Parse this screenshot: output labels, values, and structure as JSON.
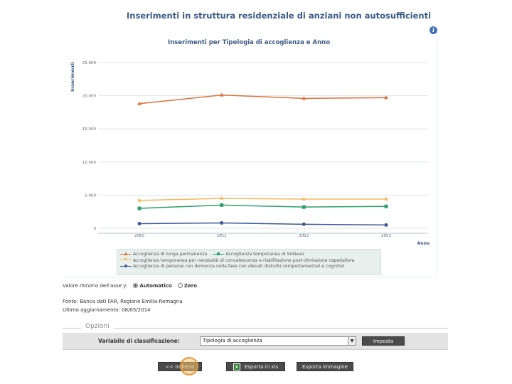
{
  "page": {
    "title": "Inserimenti in struttura residenziale di anziani non autosufficienti",
    "info_icon": "info-icon"
  },
  "chart_data": {
    "type": "line",
    "title": "Inserimenti per Tipologia di accoglienza e Anno",
    "xlabel": "Anno",
    "ylabel": "Inserimenti",
    "categories": [
      "2010",
      "2011",
      "2012",
      "2013"
    ],
    "ylim": [
      0,
      25000
    ],
    "yticks": [
      0,
      5000,
      10000,
      15000,
      20000,
      25000
    ],
    "ytick_labels": [
      "0",
      "5.000",
      "10.000",
      "15.000",
      "20.000",
      "25.000"
    ],
    "grid": true,
    "legend_position": "bottom",
    "series": [
      {
        "name": "Accoglienza di lunga permanenza",
        "marker": "triangle",
        "color": "#e0703a",
        "values": [
          18800,
          20100,
          19600,
          19700
        ]
      },
      {
        "name": "Accoglienza temporanea di Sollievo",
        "marker": "square",
        "color": "#2e9e6b",
        "values": [
          3000,
          3500,
          3200,
          3300
        ]
      },
      {
        "name": "Accoglienza temporanea per necessità di convalescenza e riabilitazione post-dimissione ospedaliera",
        "marker": "star",
        "color": "#f2b85b",
        "values": [
          4200,
          4500,
          4400,
          4400
        ]
      },
      {
        "name": "Accoglienza di persone con demenza nella fase con elevati disturbi comportamentali e cognitivi",
        "marker": "circle",
        "color": "#3a5a9a",
        "values": [
          700,
          800,
          600,
          500
        ]
      }
    ]
  },
  "yaxis_min": {
    "label": "Valore minimo dell'asse y:",
    "options": [
      "Automatico",
      "Zero"
    ],
    "selected": "Automatico"
  },
  "source": "Fonte: Banca dati FAR, Regione Emilia-Romagna",
  "updated": "Ultimo aggiornamento: 08/05/2014",
  "options": {
    "legend": "Opzioni",
    "classification_label": "Variabile di classificazione:",
    "classification_value": "Tipologia di accoglienza",
    "set_button": "Imposta"
  },
  "actions": {
    "back": "<< Indietro",
    "export_excel": "Esporta in xls",
    "export_image": "Esporta immagine"
  }
}
